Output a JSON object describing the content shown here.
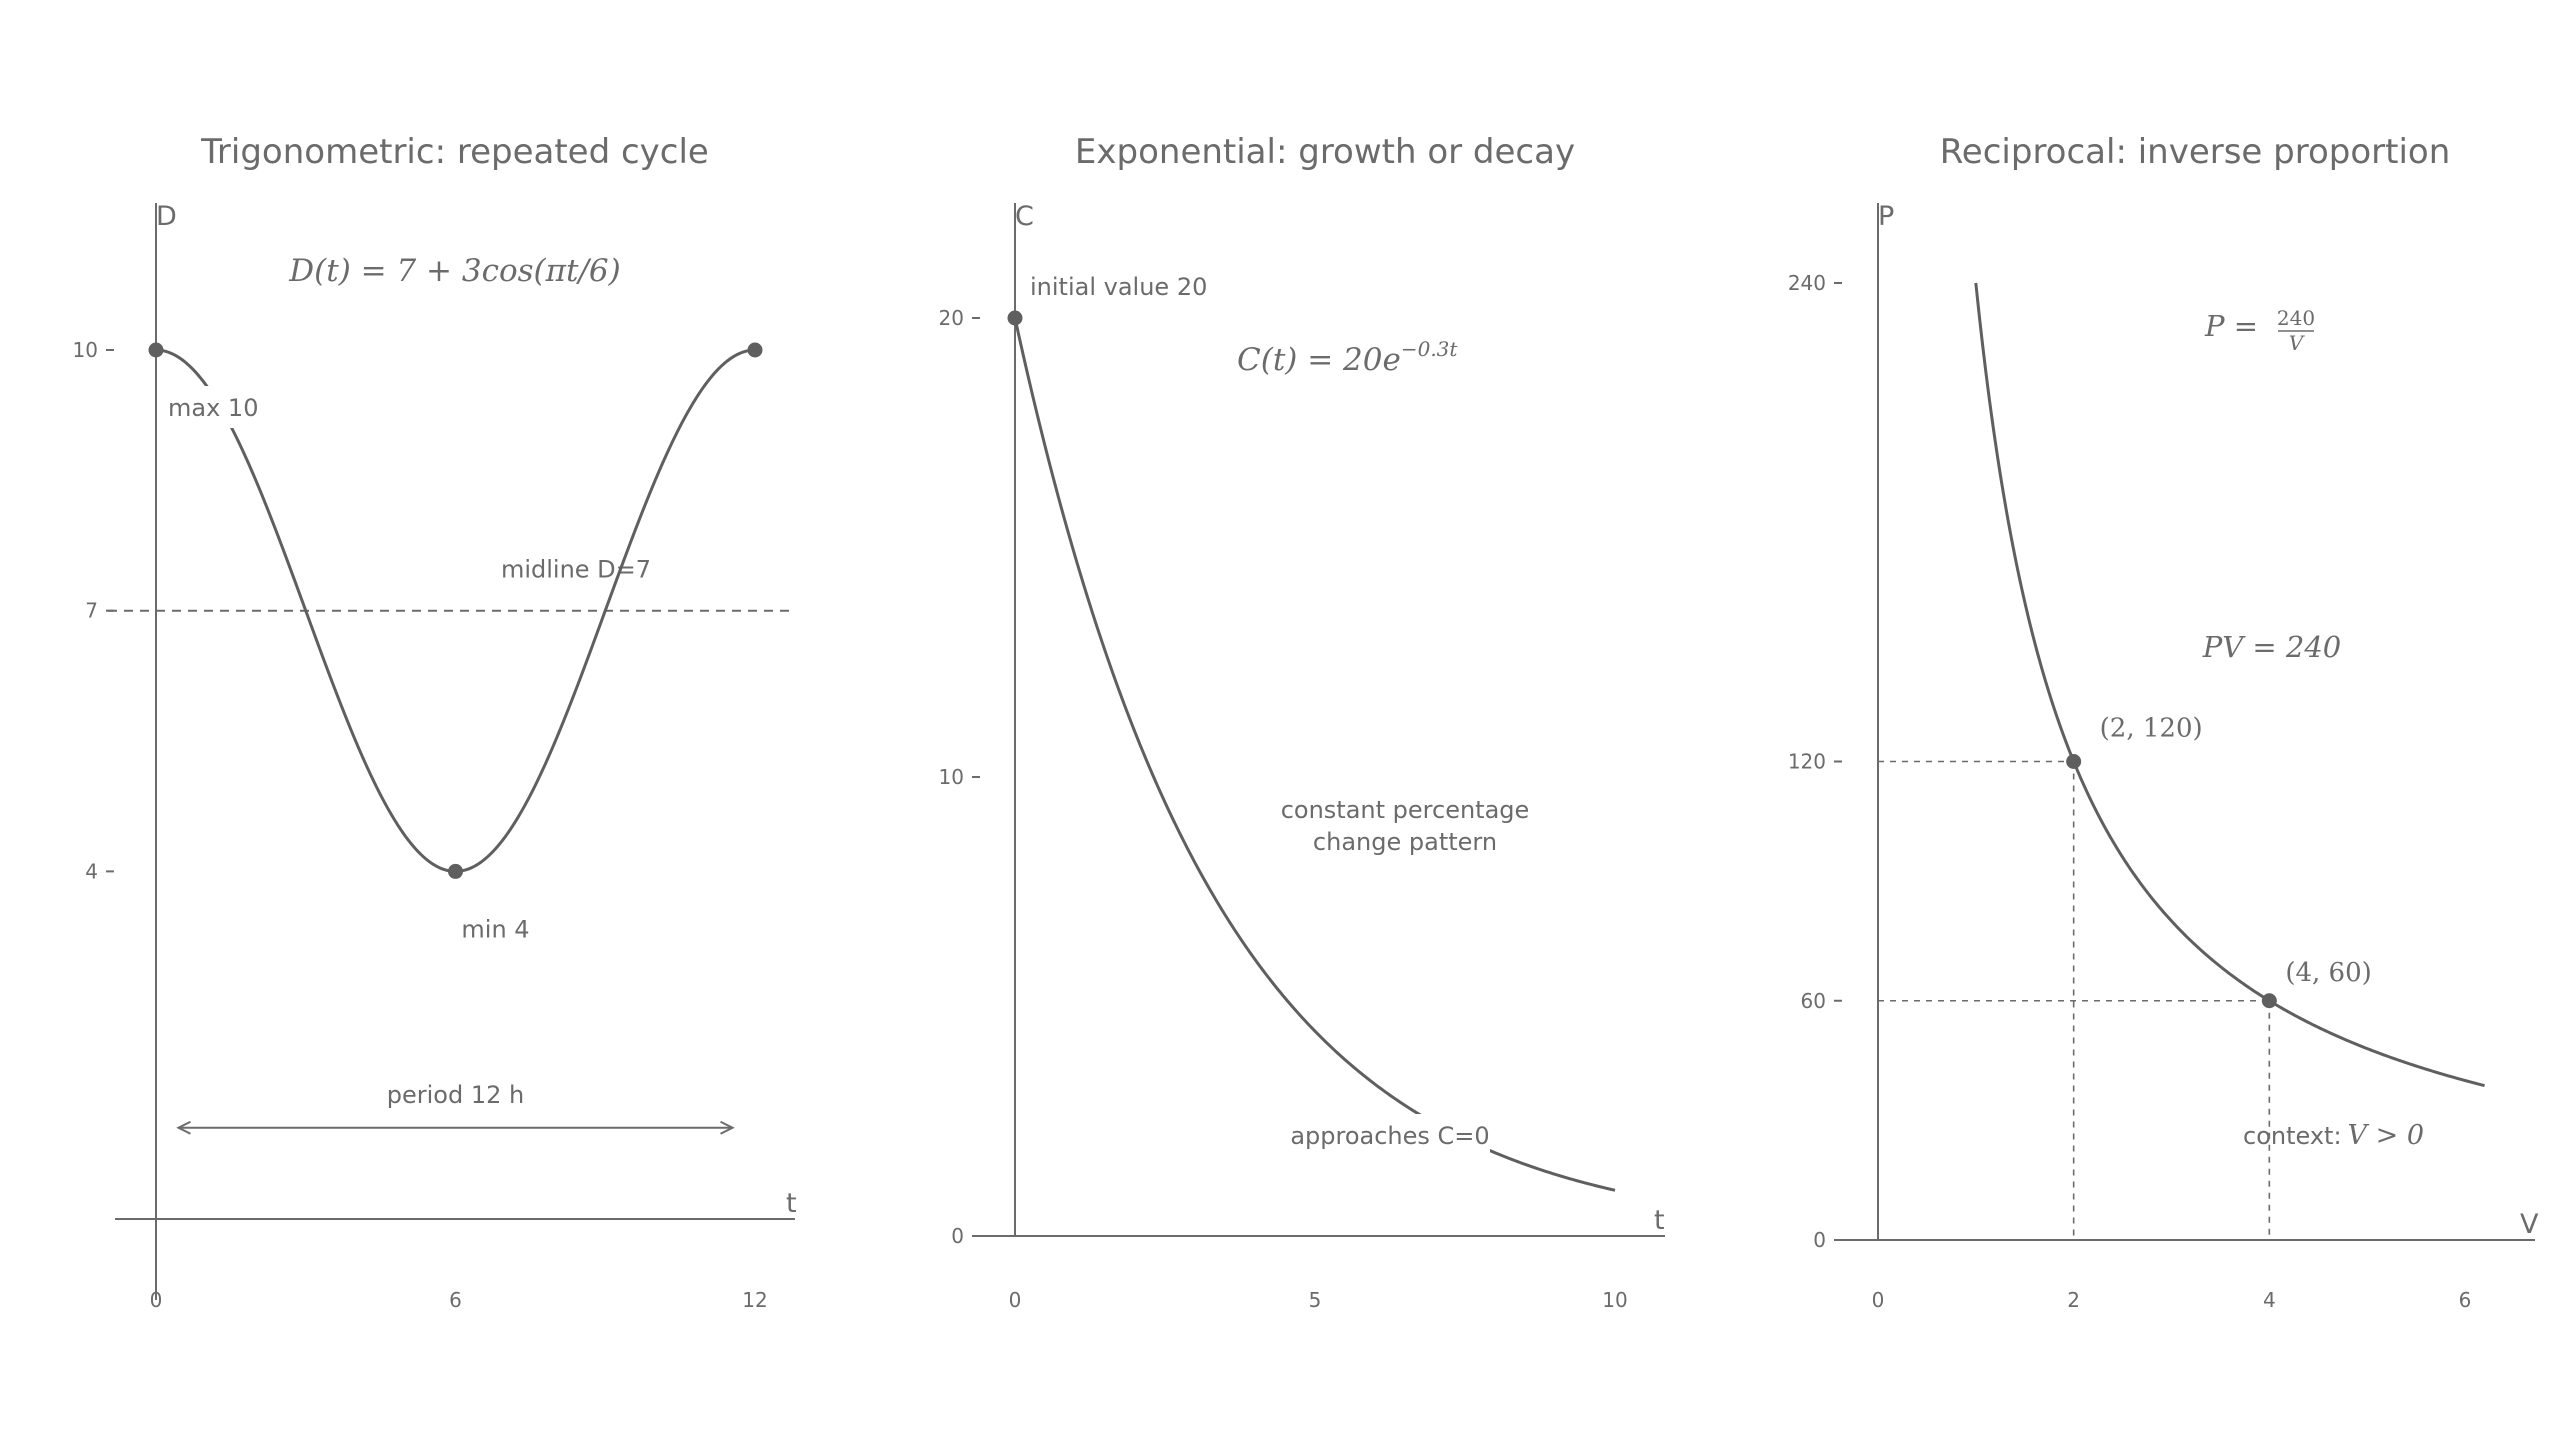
{
  "chart_data": [
    {
      "type": "line",
      "title": "Trigonometric: repeated cycle",
      "xlabel": "t",
      "ylabel": "D",
      "xlim": [
        -0.4,
        12.4
      ],
      "ylim": [
        -0.8,
        11.6
      ],
      "x_ticks": [
        0,
        6,
        12
      ],
      "y_ticks": [
        4,
        7,
        10
      ],
      "series": [
        {
          "function": "7 + 3*cos(pi*t/6)",
          "domain": [
            0,
            12
          ]
        }
      ],
      "midline": {
        "y": 7,
        "label": "midline D=7"
      },
      "points": [
        {
          "x": 0,
          "y": 10,
          "label": "max 10"
        },
        {
          "x": 6,
          "y": 4,
          "label": "min 4"
        },
        {
          "x": 12,
          "y": 10,
          "label": ""
        }
      ],
      "equation": "D(t) = 7 + 3cos(πt/6)",
      "period": {
        "from": 0.45,
        "to": 11.55,
        "y": 1.05,
        "label": "period 12 h"
      }
    },
    {
      "type": "line",
      "title": "Exponential: growth or decay",
      "xlabel": "t",
      "ylabel": "C",
      "xlim": [
        0,
        10.8
      ],
      "ylim": [
        0,
        22.6
      ],
      "x_ticks": [
        0,
        5,
        10
      ],
      "y_ticks": [
        0,
        10,
        20
      ],
      "series": [
        {
          "function": "20*exp(-0.3*t)",
          "domain": [
            0,
            10
          ]
        }
      ],
      "points": [
        {
          "x": 0,
          "y": 20,
          "label": "initial value 20"
        }
      ],
      "equation": {
        "base": "C(t) = 20e",
        "exponent": "−0.3t"
      },
      "annotations": [
        "constant percentage",
        "change pattern",
        "approaches C=0"
      ]
    },
    {
      "type": "line",
      "title": "Reciprocal: inverse proportion",
      "xlabel": "V",
      "ylabel": "P",
      "xlim": [
        0,
        6.7
      ],
      "ylim": [
        0,
        260
      ],
      "x_ticks": [
        0,
        2,
        4,
        6
      ],
      "y_ticks": [
        0,
        60,
        120,
        240
      ],
      "series": [
        {
          "function": "240/V",
          "domain": [
            1,
            6.2
          ]
        }
      ],
      "points": [
        {
          "x": 2,
          "y": 120,
          "label": "(2, 120)"
        },
        {
          "x": 4,
          "y": 60,
          "label": "(4, 60)"
        }
      ],
      "equation": {
        "lhs": "P =",
        "numerator": "240",
        "denominator": "V"
      },
      "equation2": "PV = 240",
      "context": {
        "prefix": "context:",
        "condition": "V > 0"
      }
    }
  ]
}
